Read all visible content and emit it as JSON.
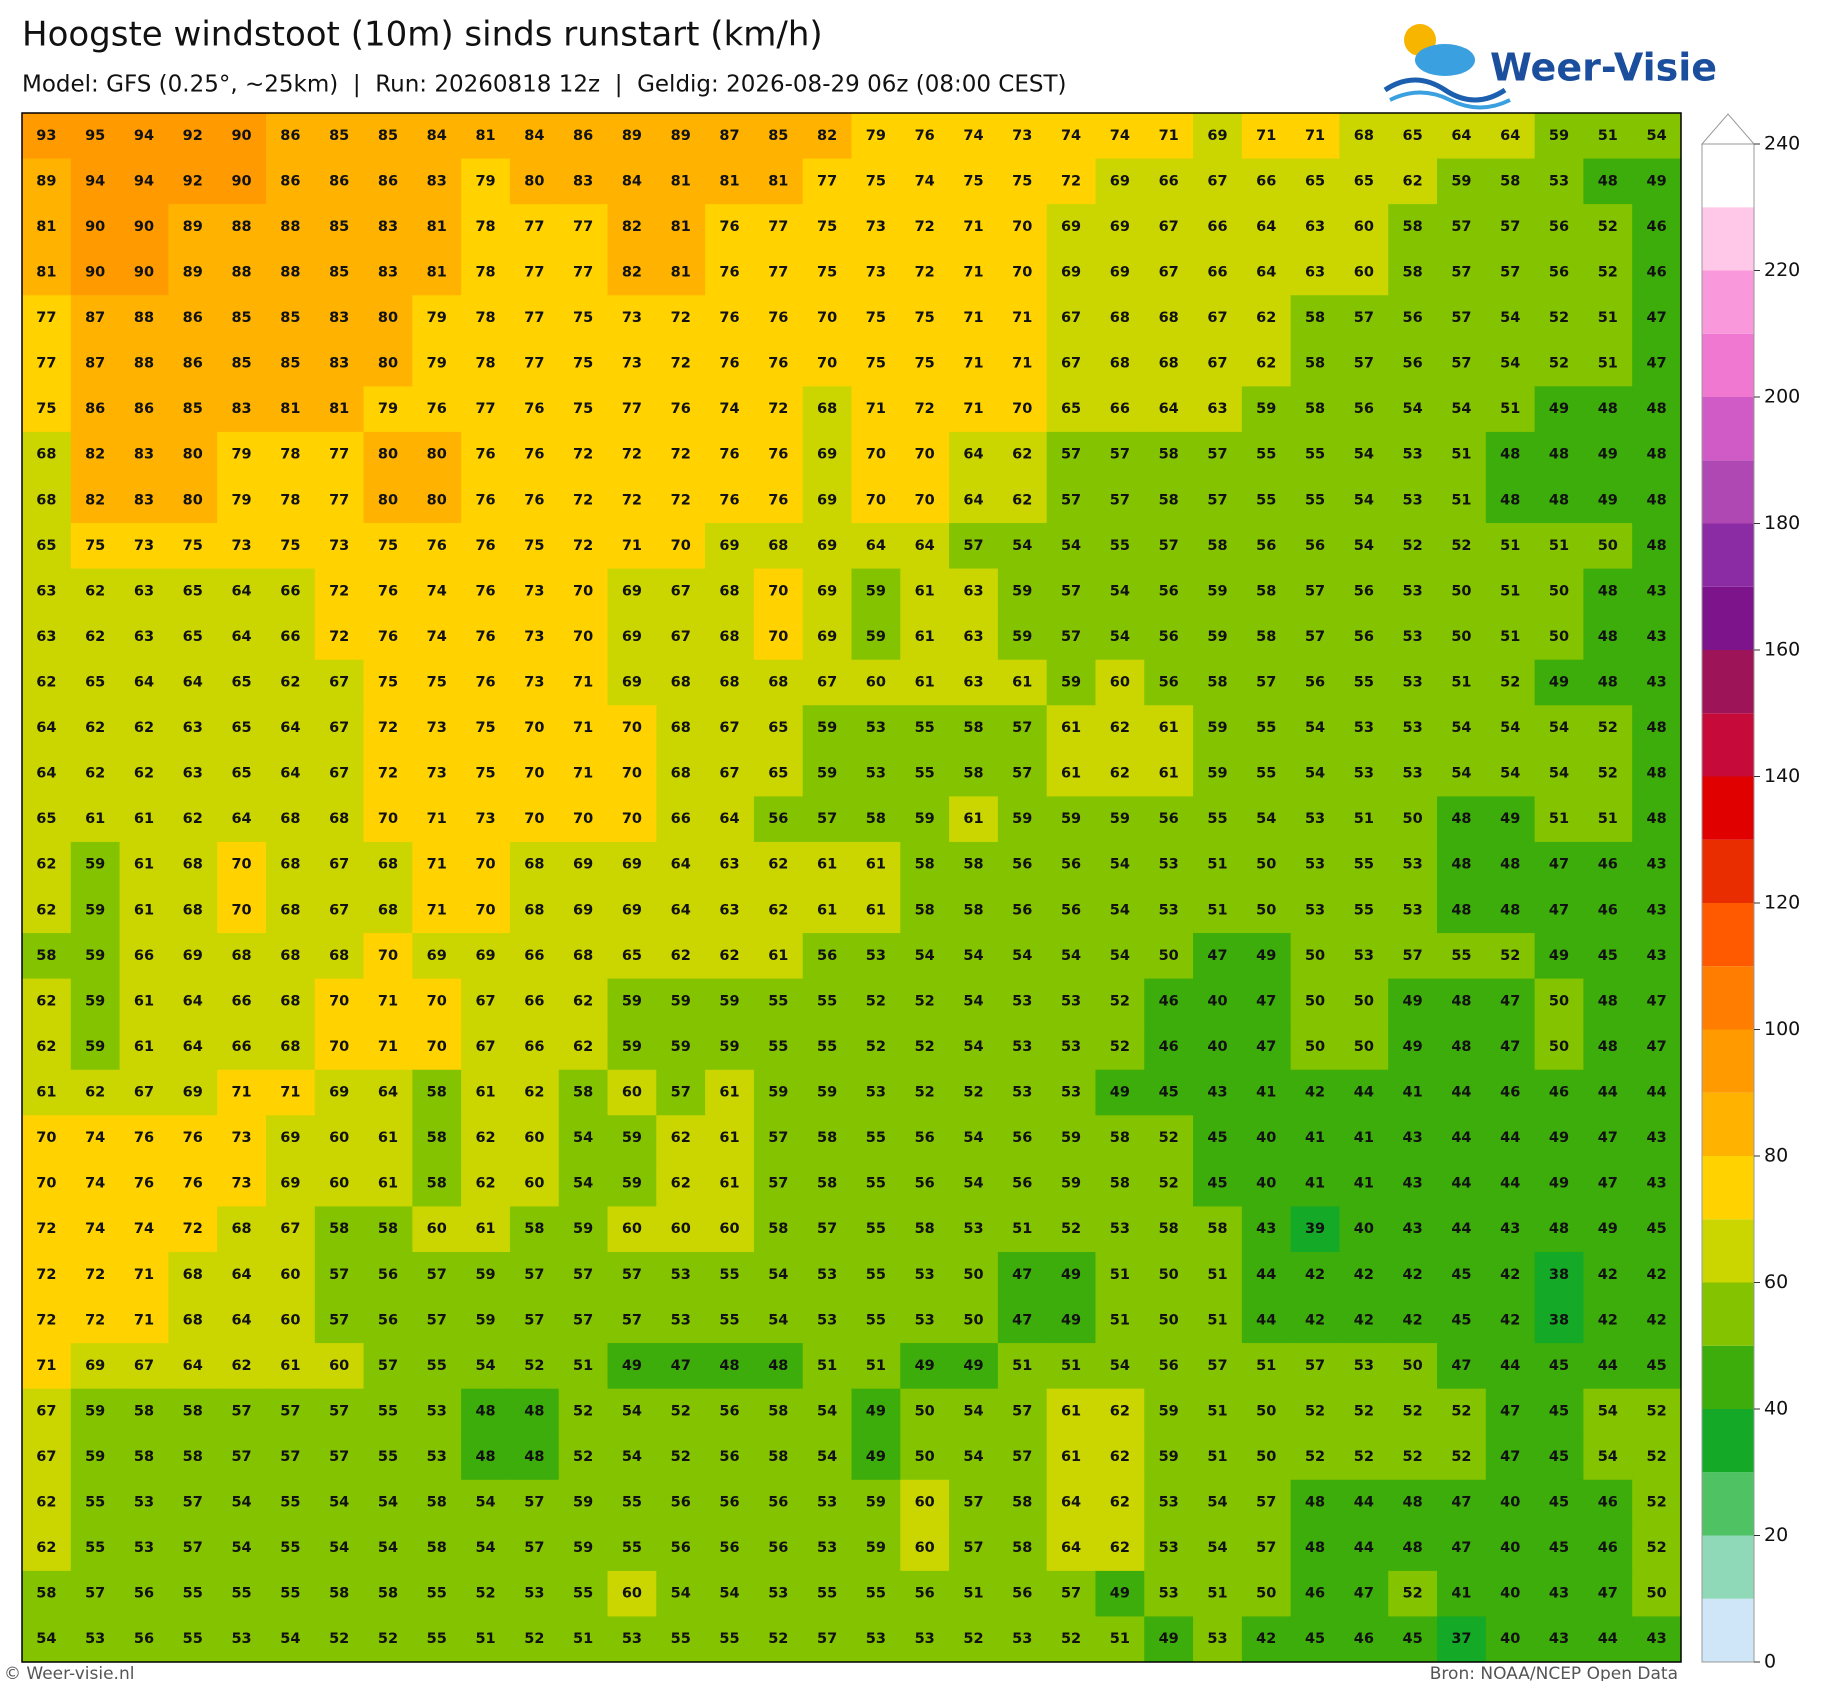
{
  "header": {
    "title": "Hoogste windstoot (10m) sinds runstart (km/h)",
    "subtitle": "Model: GFS (0.25°, ~25km)  |  Run: 20260818 12z  |  Geldig: 2026-08-29 06z (08:00 CEST)"
  },
  "logo": {
    "text": "Weer-Visie"
  },
  "map": {
    "rows": [
      [
        93,
        95,
        94,
        92,
        90,
        86,
        85,
        85,
        84,
        81,
        84,
        86,
        89,
        89,
        87,
        85,
        82,
        79,
        76,
        74,
        73,
        74,
        74,
        71,
        69,
        71,
        71,
        68,
        65,
        64,
        64,
        59,
        51,
        54
      ],
      [
        89,
        94,
        94,
        92,
        90,
        86,
        86,
        86,
        83,
        79,
        80,
        83,
        84,
        81,
        81,
        81,
        77,
        75,
        74,
        75,
        75,
        72,
        69,
        66,
        67,
        66,
        65,
        65,
        62,
        59,
        58,
        53,
        48,
        49
      ],
      [
        81,
        90,
        90,
        89,
        88,
        88,
        85,
        83,
        81,
        78,
        77,
        77,
        82,
        81,
        76,
        77,
        75,
        73,
        72,
        71,
        70,
        69,
        69,
        67,
        66,
        64,
        63,
        60,
        58,
        57,
        57,
        56,
        52,
        46
      ],
      [
        81,
        90,
        90,
        89,
        88,
        88,
        85,
        83,
        81,
        78,
        77,
        77,
        82,
        81,
        76,
        77,
        75,
        73,
        72,
        71,
        70,
        69,
        69,
        67,
        66,
        64,
        63,
        60,
        58,
        57,
        57,
        56,
        52,
        46
      ],
      [
        77,
        87,
        88,
        86,
        85,
        85,
        83,
        80,
        79,
        78,
        77,
        75,
        73,
        72,
        76,
        76,
        70,
        75,
        75,
        71,
        71,
        67,
        68,
        68,
        67,
        62,
        58,
        57,
        56,
        57,
        54,
        52,
        51,
        47
      ],
      [
        77,
        87,
        88,
        86,
        85,
        85,
        83,
        80,
        79,
        78,
        77,
        75,
        73,
        72,
        76,
        76,
        70,
        75,
        75,
        71,
        71,
        67,
        68,
        68,
        67,
        62,
        58,
        57,
        56,
        57,
        54,
        52,
        51,
        47
      ],
      [
        75,
        86,
        86,
        85,
        83,
        81,
        81,
        79,
        76,
        77,
        76,
        75,
        77,
        76,
        74,
        72,
        68,
        71,
        72,
        71,
        70,
        65,
        66,
        64,
        63,
        59,
        58,
        56,
        54,
        54,
        51,
        49,
        48,
        48
      ],
      [
        68,
        82,
        83,
        80,
        79,
        78,
        77,
        80,
        80,
        76,
        76,
        72,
        72,
        72,
        76,
        76,
        69,
        70,
        70,
        64,
        62,
        57,
        57,
        58,
        57,
        55,
        55,
        54,
        53,
        51,
        48,
        48,
        49,
        48
      ],
      [
        68,
        82,
        83,
        80,
        79,
        78,
        77,
        80,
        80,
        76,
        76,
        72,
        72,
        72,
        76,
        76,
        69,
        70,
        70,
        64,
        62,
        57,
        57,
        58,
        57,
        55,
        55,
        54,
        53,
        51,
        48,
        48,
        49,
        48
      ],
      [
        65,
        75,
        73,
        75,
        73,
        75,
        73,
        75,
        76,
        76,
        75,
        72,
        71,
        70,
        69,
        68,
        69,
        64,
        64,
        57,
        54,
        54,
        55,
        57,
        58,
        56,
        56,
        54,
        52,
        52,
        51,
        51,
        50,
        48
      ],
      [
        63,
        62,
        63,
        65,
        64,
        66,
        72,
        76,
        74,
        76,
        73,
        70,
        69,
        67,
        68,
        70,
        69,
        59,
        61,
        63,
        59,
        57,
        54,
        56,
        59,
        58,
        57,
        56,
        53,
        50,
        51,
        50,
        48,
        43
      ],
      [
        63,
        62,
        63,
        65,
        64,
        66,
        72,
        76,
        74,
        76,
        73,
        70,
        69,
        67,
        68,
        70,
        69,
        59,
        61,
        63,
        59,
        57,
        54,
        56,
        59,
        58,
        57,
        56,
        53,
        50,
        51,
        50,
        48,
        43
      ],
      [
        62,
        65,
        64,
        64,
        65,
        62,
        67,
        75,
        75,
        76,
        73,
        71,
        69,
        68,
        68,
        68,
        67,
        60,
        61,
        63,
        61,
        59,
        60,
        56,
        58,
        57,
        56,
        55,
        53,
        51,
        52,
        49,
        48,
        43
      ],
      [
        64,
        62,
        62,
        63,
        65,
        64,
        67,
        72,
        73,
        75,
        70,
        71,
        70,
        68,
        67,
        65,
        59,
        53,
        55,
        58,
        57,
        61,
        62,
        61,
        59,
        55,
        54,
        53,
        53,
        54,
        54,
        54,
        52,
        48
      ],
      [
        64,
        62,
        62,
        63,
        65,
        64,
        67,
        72,
        73,
        75,
        70,
        71,
        70,
        68,
        67,
        65,
        59,
        53,
        55,
        58,
        57,
        61,
        62,
        61,
        59,
        55,
        54,
        53,
        53,
        54,
        54,
        54,
        52,
        48
      ],
      [
        65,
        61,
        61,
        62,
        64,
        68,
        68,
        70,
        71,
        73,
        70,
        70,
        70,
        66,
        64,
        56,
        57,
        58,
        59,
        61,
        59,
        59,
        59,
        56,
        55,
        54,
        53,
        51,
        50,
        48,
        49,
        51,
        51,
        48
      ],
      [
        62,
        59,
        61,
        68,
        70,
        68,
        67,
        68,
        71,
        70,
        68,
        69,
        69,
        64,
        63,
        62,
        61,
        61,
        58,
        58,
        56,
        56,
        54,
        53,
        51,
        50,
        53,
        55,
        53,
        48,
        48,
        47,
        46,
        43
      ],
      [
        62,
        59,
        61,
        68,
        70,
        68,
        67,
        68,
        71,
        70,
        68,
        69,
        69,
        64,
        63,
        62,
        61,
        61,
        58,
        58,
        56,
        56,
        54,
        53,
        51,
        50,
        53,
        55,
        53,
        48,
        48,
        47,
        46,
        43
      ],
      [
        58,
        59,
        66,
        69,
        68,
        68,
        68,
        70,
        69,
        69,
        66,
        68,
        65,
        62,
        62,
        61,
        56,
        53,
        54,
        54,
        54,
        54,
        54,
        50,
        47,
        49,
        50,
        53,
        57,
        55,
        52,
        49,
        45,
        43
      ],
      [
        62,
        59,
        61,
        64,
        66,
        68,
        70,
        71,
        70,
        67,
        66,
        62,
        59,
        59,
        59,
        55,
        55,
        52,
        52,
        54,
        53,
        53,
        52,
        46,
        40,
        47,
        50,
        50,
        49,
        48,
        47,
        50,
        48,
        47
      ],
      [
        62,
        59,
        61,
        64,
        66,
        68,
        70,
        71,
        70,
        67,
        66,
        62,
        59,
        59,
        59,
        55,
        55,
        52,
        52,
        54,
        53,
        53,
        52,
        46,
        40,
        47,
        50,
        50,
        49,
        48,
        47,
        50,
        48,
        47
      ],
      [
        61,
        62,
        67,
        69,
        71,
        71,
        69,
        64,
        58,
        61,
        62,
        58,
        60,
        57,
        61,
        59,
        59,
        53,
        52,
        52,
        53,
        53,
        49,
        45,
        43,
        41,
        42,
        44,
        41,
        44,
        46,
        46,
        44,
        44
      ],
      [
        70,
        74,
        76,
        76,
        73,
        69,
        60,
        61,
        58,
        62,
        60,
        54,
        59,
        62,
        61,
        57,
        58,
        55,
        56,
        54,
        56,
        59,
        58,
        52,
        45,
        40,
        41,
        41,
        43,
        44,
        44,
        49,
        47,
        43
      ],
      [
        70,
        74,
        76,
        76,
        73,
        69,
        60,
        61,
        58,
        62,
        60,
        54,
        59,
        62,
        61,
        57,
        58,
        55,
        56,
        54,
        56,
        59,
        58,
        52,
        45,
        40,
        41,
        41,
        43,
        44,
        44,
        49,
        47,
        43
      ],
      [
        72,
        74,
        74,
        72,
        68,
        67,
        58,
        58,
        60,
        61,
        58,
        59,
        60,
        60,
        60,
        58,
        57,
        55,
        58,
        53,
        51,
        52,
        53,
        58,
        58,
        43,
        39,
        40,
        43,
        44,
        43,
        48,
        49,
        45
      ],
      [
        72,
        72,
        71,
        68,
        64,
        60,
        57,
        56,
        57,
        59,
        57,
        57,
        57,
        53,
        55,
        54,
        53,
        55,
        53,
        50,
        47,
        49,
        51,
        50,
        51,
        44,
        42,
        42,
        42,
        45,
        42,
        38,
        42,
        42
      ],
      [
        72,
        72,
        71,
        68,
        64,
        60,
        57,
        56,
        57,
        59,
        57,
        57,
        57,
        53,
        55,
        54,
        53,
        55,
        53,
        50,
        47,
        49,
        51,
        50,
        51,
        44,
        42,
        42,
        42,
        45,
        42,
        38,
        42,
        42
      ],
      [
        71,
        69,
        67,
        64,
        62,
        61,
        60,
        57,
        55,
        54,
        52,
        51,
        49,
        47,
        48,
        48,
        51,
        51,
        49,
        49,
        51,
        51,
        54,
        56,
        57,
        51,
        57,
        53,
        50,
        47,
        44,
        45,
        44,
        45
      ],
      [
        67,
        59,
        58,
        58,
        57,
        57,
        57,
        55,
        53,
        48,
        48,
        52,
        54,
        52,
        56,
        58,
        54,
        49,
        50,
        54,
        57,
        61,
        62,
        59,
        51,
        50,
        52,
        52,
        52,
        52,
        47,
        45,
        54,
        52
      ],
      [
        67,
        59,
        58,
        58,
        57,
        57,
        57,
        55,
        53,
        48,
        48,
        52,
        54,
        52,
        56,
        58,
        54,
        49,
        50,
        54,
        57,
        61,
        62,
        59,
        51,
        50,
        52,
        52,
        52,
        52,
        47,
        45,
        54,
        52
      ],
      [
        62,
        55,
        53,
        57,
        54,
        55,
        54,
        54,
        58,
        54,
        57,
        59,
        55,
        56,
        56,
        56,
        53,
        59,
        60,
        57,
        58,
        64,
        62,
        53,
        54,
        57,
        48,
        44,
        48,
        47,
        40,
        45,
        46,
        52
      ],
      [
        62,
        55,
        53,
        57,
        54,
        55,
        54,
        54,
        58,
        54,
        57,
        59,
        55,
        56,
        56,
        56,
        53,
        59,
        60,
        57,
        58,
        64,
        62,
        53,
        54,
        57,
        48,
        44,
        48,
        47,
        40,
        45,
        46,
        52
      ],
      [
        58,
        57,
        56,
        55,
        55,
        55,
        58,
        58,
        55,
        52,
        53,
        55,
        60,
        54,
        54,
        53,
        55,
        55,
        56,
        51,
        56,
        57,
        49,
        53,
        51,
        50,
        46,
        47,
        52,
        41,
        40,
        43,
        47,
        50
      ],
      [
        54,
        53,
        56,
        55,
        53,
        54,
        52,
        52,
        55,
        51,
        52,
        51,
        53,
        55,
        55,
        52,
        57,
        53,
        53,
        52,
        53,
        52,
        51,
        49,
        53,
        42,
        45,
        46,
        45,
        37,
        40,
        43,
        44,
        43
      ]
    ]
  },
  "colorbar": {
    "lim": [
      0,
      240
    ],
    "ticks": [
      0,
      20,
      40,
      60,
      80,
      100,
      120,
      140,
      160,
      180,
      200,
      220,
      240
    ],
    "bounds": [
      0,
      10,
      20,
      30,
      40,
      50,
      60,
      70,
      80,
      90,
      100,
      110,
      120,
      130,
      140,
      150,
      160,
      170,
      180,
      190,
      200,
      210,
      220,
      230,
      240
    ],
    "colors": [
      "#cfe6f8",
      "#8fd9b8",
      "#4fc264",
      "#14aa28",
      "#3cad0a",
      "#84c300",
      "#cbd600",
      "#ffd200",
      "#ffb300",
      "#ff9a00",
      "#ff7d00",
      "#ff5a00",
      "#ea2d00",
      "#e00000",
      "#c60a3a",
      "#9e1458",
      "#7e148c",
      "#8c2ca4",
      "#b048b4",
      "#d05ac6",
      "#f078d0",
      "#fa98dc",
      "#ffc8e8",
      "#ffffff"
    ]
  },
  "footer": {
    "left": "© Weer-visie.nl",
    "right": "Bron: NOAA/NCEP Open Data"
  }
}
